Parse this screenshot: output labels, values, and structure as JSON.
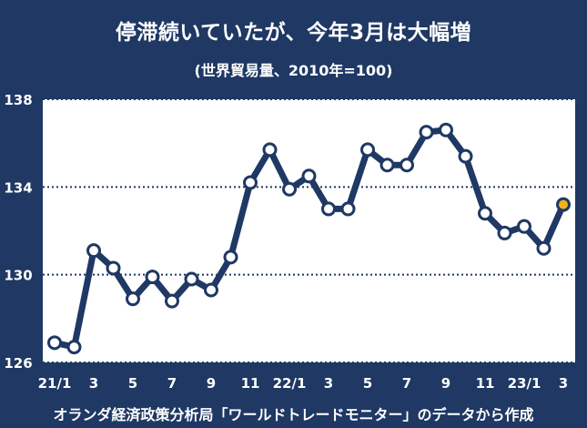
{
  "title": "停滞続いていたが、今年3月は大幅増",
  "subtitle": "(世界貿易量、2010年=100)",
  "source": "オランダ経済政策分析局「ワールドトレードモニター」のデータから作成",
  "colors": {
    "background": "#1f3864",
    "plot_background": "#ffffff",
    "line": "#1f3864",
    "marker_fill": "#ffffff",
    "highlight_marker": "#f2b21a",
    "gridline": "#1f3864"
  },
  "chart_data": {
    "type": "line",
    "title": "停滞続いていたが、今年3月は大幅増",
    "subtitle": "(世界貿易量、2010年=100)",
    "xlabel": "",
    "ylabel": "",
    "categories": [
      "21/1",
      "2",
      "3",
      "4",
      "5",
      "6",
      "7",
      "8",
      "9",
      "10",
      "11",
      "12",
      "22/1",
      "2",
      "3",
      "4",
      "5",
      "6",
      "7",
      "8",
      "9",
      "10",
      "11",
      "12",
      "23/1",
      "2",
      "3"
    ],
    "x_tick_labels": [
      "21/1",
      "",
      "3",
      "",
      "5",
      "",
      "7",
      "",
      "9",
      "",
      "11",
      "",
      "22/1",
      "",
      "3",
      "",
      "5",
      "",
      "7",
      "",
      "9",
      "",
      "11",
      "",
      "23/1",
      "",
      "3"
    ],
    "series": [
      {
        "values": [
          126.9,
          126.7,
          131.1,
          130.3,
          128.9,
          129.9,
          128.8,
          129.8,
          129.3,
          130.8,
          134.2,
          135.7,
          133.9,
          134.5,
          133.0,
          133.0,
          135.7,
          135.0,
          135.0,
          136.5,
          136.6,
          135.4,
          132.8,
          131.9,
          132.2,
          131.2,
          133.2
        ]
      }
    ],
    "highlight_index": 26,
    "ylim": [
      126,
      138
    ],
    "yticks": [
      126,
      130,
      134,
      138
    ],
    "grid": "horizontal dotted",
    "legend": "none"
  }
}
